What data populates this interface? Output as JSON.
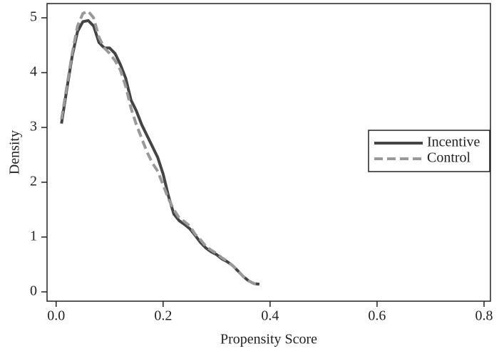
{
  "chart_data": {
    "type": "line",
    "x_label": "Propensity Score",
    "y_label": "Density",
    "x": [
      0.01,
      0.02,
      0.03,
      0.04,
      0.05,
      0.06,
      0.07,
      0.08,
      0.09,
      0.1,
      0.11,
      0.12,
      0.13,
      0.14,
      0.15,
      0.16,
      0.17,
      0.18,
      0.19,
      0.2,
      0.21,
      0.22,
      0.23,
      0.24,
      0.25,
      0.26,
      0.27,
      0.28,
      0.29,
      0.3,
      0.31,
      0.32,
      0.33,
      0.34,
      0.35,
      0.36,
      0.37,
      0.38
    ],
    "series": [
      {
        "name": "Incentive",
        "color": "#444444",
        "style": "solid",
        "values": [
          3.07,
          3.7,
          4.3,
          4.75,
          4.93,
          4.95,
          4.85,
          4.55,
          4.45,
          4.45,
          4.35,
          4.15,
          3.9,
          3.5,
          3.3,
          3.05,
          2.85,
          2.65,
          2.45,
          2.15,
          1.75,
          1.42,
          1.3,
          1.23,
          1.15,
          1.03,
          0.9,
          0.8,
          0.73,
          0.68,
          0.6,
          0.55,
          0.48,
          0.38,
          0.28,
          0.2,
          0.15,
          0.14
        ]
      },
      {
        "name": "Control",
        "color": "#999999",
        "style": "dashed",
        "values": [
          3.15,
          3.75,
          4.35,
          4.85,
          5.08,
          5.12,
          5.0,
          4.65,
          4.45,
          4.35,
          4.22,
          4.05,
          3.75,
          3.35,
          3.05,
          2.8,
          2.55,
          2.35,
          2.2,
          1.95,
          1.7,
          1.5,
          1.35,
          1.28,
          1.2,
          1.05,
          0.95,
          0.83,
          0.76,
          0.7,
          0.62,
          0.56,
          0.48,
          0.38,
          0.28,
          0.2,
          0.15,
          0.14
        ]
      }
    ],
    "xlim": [
      -0.017,
      0.812
    ],
    "ylim": [
      -0.17,
      5.26
    ],
    "xticks": [
      {
        "value": 0,
        "label": "0.0"
      },
      0.2,
      0.4,
      0.6,
      0.8
    ],
    "yticks": [
      0,
      1,
      2,
      3,
      4,
      5
    ],
    "grid": false,
    "legend": "right"
  }
}
